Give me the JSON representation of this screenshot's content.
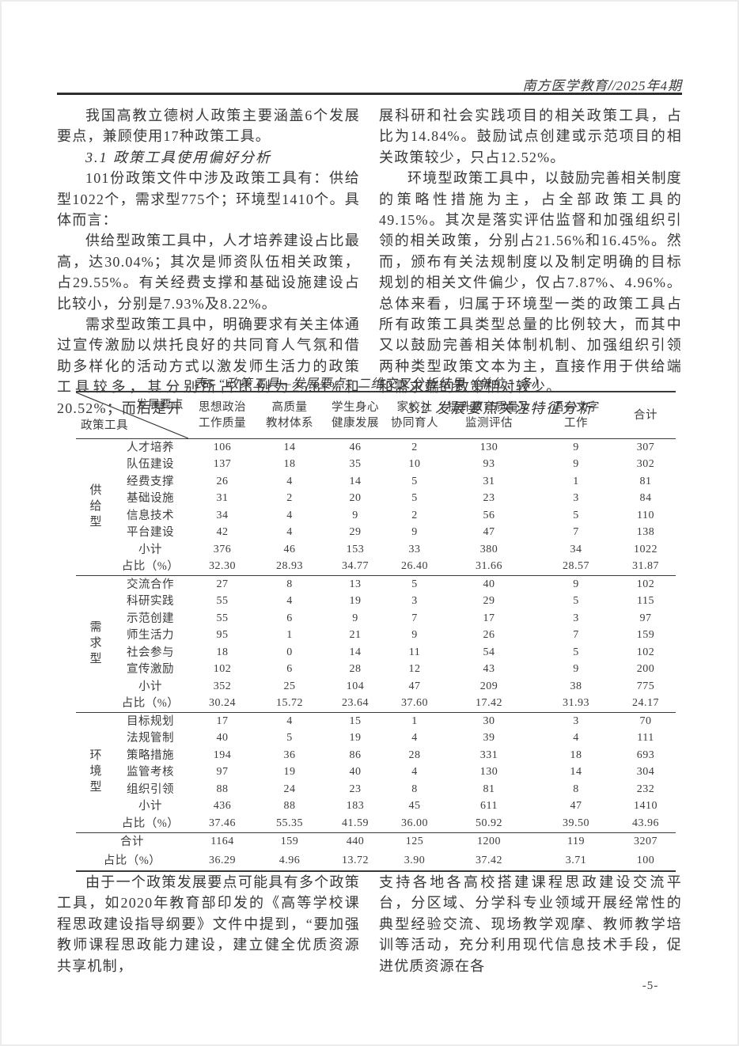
{
  "header": {
    "journal": "南方医学教育",
    "slash_bold": "/",
    "slash_thin": "/",
    "issue": "2025年4期"
  },
  "content": {
    "top_left": [
      {
        "text": "我国高教立德树人政策主要涵盖6个发展要点，兼顾使用17种政策工具。"
      },
      {
        "text": "3.1 政策工具使用偏好分析"
      },
      {
        "text": "101份政策文件中涉及政策工具有：供给型1022个，需求型775个；环境型1410个。具体而言："
      },
      {
        "text": "供给型政策工具中，人才培养建设占比最高，达30.04%；其次是师资队伍相关政策，占29.55%。有关经费支撑和基础设施建设占比较小，分别是7.93%及8.22%。"
      },
      {
        "text": "需求型政策工具中，明确要求有关主体通过宣传激励以烘托良好的共同育人气氛和借助多样化的活动方式以激发师生活力的政策工具较多，其分别所占比例为25.81%和20.52%；而后是开"
      }
    ],
    "top_right": [
      {
        "text": "展科研和社会实践项目的相关政策工具，占比为14.84%。鼓励试点创建或示范项目的相关政策较少，只占12.52%。"
      },
      {
        "text": "环境型政策工具中，以鼓励完善相关制度的策略性措施为主，占全部政策工具的49.15%。其次是落实评估监督和加强组织引领的相关政策，分别占21.56%和16.45%。然而，颁布有关法规制度以及制定明确的目标规划的相关文件偏少，仅占7.87%、4.96%。总体来看，归属于环境型一类的政策工具占所有政策工具类型总量的比例较大，而其中又以鼓励完善相关体制机制、加强组织引领两种类型政策文本为主，直接作用于供给端和需求端的政策相对较少。"
      },
      {
        "text": "3.2 发展要点关注特征分析"
      }
    ],
    "bottom_left": [
      {
        "text": "由于一个政策发展要点可能具有多个政策工具，如2020年教育部印发的《高等学校课程思政建设指导纲要》文件中提到，“要加强教师课程思政能力建设，建立健全优质资源共享机制，"
      }
    ],
    "bottom_right": [
      {
        "text": "支持各地各高校搭建课程思政建设交流平台，分区域、分学科专业领域开展经常性的典型经验交流、现场教学观摩、教师教学培训等活动，充分利用现代信息技术手段，促进优质资源在各"
      }
    ]
  },
  "table": {
    "title": "表5 “政策工具—发展要点” 二维交叉分析结果（单位：条）",
    "corner_top": "发展要点",
    "corner_bottom": "政策工具",
    "columns": [
      [
        "思想政治",
        "工作质量"
      ],
      [
        "高质量",
        "教材体系"
      ],
      [
        "学生身心",
        "健康发展"
      ],
      [
        "家校社",
        "协同育人"
      ],
      [
        "提升教育质量及",
        "监测评估"
      ],
      [
        "语言文字",
        "工作"
      ],
      [
        "合计"
      ]
    ],
    "sections": [
      {
        "label": "供给型",
        "rows": [
          {
            "label": "人才培养",
            "values": [
              "106",
              "14",
              "46",
              "2",
              "130",
              "9",
              "307"
            ]
          },
          {
            "label": "队伍建设",
            "values": [
              "137",
              "18",
              "35",
              "10",
              "93",
              "9",
              "302"
            ]
          },
          {
            "label": "经费支撑",
            "values": [
              "26",
              "4",
              "14",
              "5",
              "31",
              "1",
              "81"
            ]
          },
          {
            "label": "基础设施",
            "values": [
              "31",
              "2",
              "20",
              "5",
              "23",
              "3",
              "84"
            ]
          },
          {
            "label": "信息技术",
            "values": [
              "34",
              "4",
              "9",
              "2",
              "56",
              "5",
              "110"
            ]
          },
          {
            "label": "平台建设",
            "values": [
              "42",
              "4",
              "29",
              "9",
              "47",
              "7",
              "138"
            ]
          },
          {
            "label": "小计",
            "type": "subtotal",
            "values": [
              "376",
              "46",
              "153",
              "33",
              "380",
              "34",
              "1022"
            ]
          },
          {
            "label": "占比（%）",
            "type": "ratio",
            "values": [
              "32.30",
              "28.93",
              "34.77",
              "26.40",
              "31.66",
              "28.57",
              "31.87"
            ]
          }
        ]
      },
      {
        "label": "需求型",
        "rows": [
          {
            "label": "交流合作",
            "values": [
              "27",
              "8",
              "13",
              "5",
              "40",
              "9",
              "102"
            ]
          },
          {
            "label": "科研实践",
            "values": [
              "55",
              "4",
              "19",
              "3",
              "29",
              "5",
              "115"
            ]
          },
          {
            "label": "示范创建",
            "values": [
              "55",
              "6",
              "9",
              "7",
              "17",
              "3",
              "97"
            ]
          },
          {
            "label": "师生活力",
            "values": [
              "95",
              "1",
              "21",
              "9",
              "26",
              "7",
              "159"
            ]
          },
          {
            "label": "社会参与",
            "values": [
              "18",
              "0",
              "14",
              "11",
              "54",
              "5",
              "102"
            ]
          },
          {
            "label": "宣传激励",
            "values": [
              "102",
              "6",
              "28",
              "12",
              "43",
              "9",
              "200"
            ]
          },
          {
            "label": "小计",
            "type": "subtotal",
            "values": [
              "352",
              "25",
              "104",
              "47",
              "209",
              "38",
              "775"
            ]
          },
          {
            "label": "占比（%）",
            "type": "ratio",
            "values": [
              "30.24",
              "15.72",
              "23.64",
              "37.60",
              "17.42",
              "31.93",
              "24.17"
            ]
          }
        ]
      },
      {
        "label": "环境型",
        "rows": [
          {
            "label": "目标规划",
            "values": [
              "17",
              "4",
              "15",
              "1",
              "30",
              "3",
              "70"
            ]
          },
          {
            "label": "法规管制",
            "values": [
              "40",
              "5",
              "19",
              "4",
              "39",
              "4",
              "111"
            ]
          },
          {
            "label": "策略措施",
            "values": [
              "194",
              "36",
              "86",
              "28",
              "331",
              "18",
              "693"
            ]
          },
          {
            "label": "监管考核",
            "values": [
              "97",
              "19",
              "40",
              "4",
              "130",
              "14",
              "304"
            ]
          },
          {
            "label": "组织引领",
            "values": [
              "88",
              "24",
              "23",
              "8",
              "81",
              "8",
              "232"
            ]
          },
          {
            "label": "小计",
            "type": "subtotal",
            "values": [
              "436",
              "88",
              "183",
              "45",
              "611",
              "47",
              "1410"
            ]
          },
          {
            "label": "占比（%）",
            "type": "ratio",
            "values": [
              "37.46",
              "55.35",
              "41.59",
              "36.00",
              "50.92",
              "39.50",
              "43.96"
            ]
          }
        ]
      }
    ],
    "footer": [
      {
        "label": "合计",
        "values": [
          "1164",
          "159",
          "440",
          "125",
          "1200",
          "119",
          "3207"
        ]
      },
      {
        "label": "占比（%）",
        "values": [
          "36.29",
          "4.96",
          "13.72",
          "3.90",
          "37.42",
          "3.71",
          "100"
        ]
      }
    ]
  },
  "footer": {
    "page_number": "-5-"
  },
  "colors": {
    "text": "#383838",
    "rule": "#2e2e2e"
  }
}
